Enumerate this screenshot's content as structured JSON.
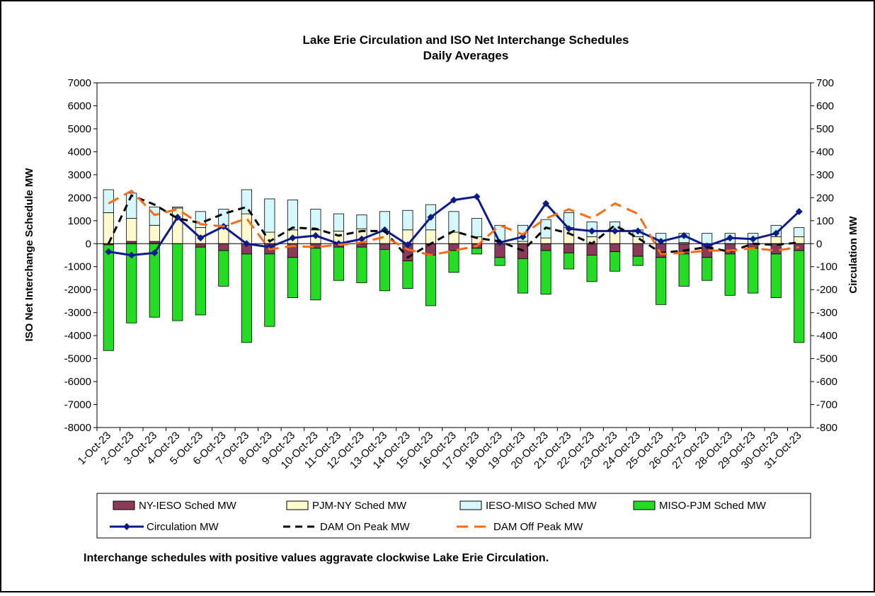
{
  "chart_data": {
    "type": "bar",
    "title": "Lake Erie Circulation and ISO Net Interchange Schedules",
    "subtitle": "Daily Averages",
    "y_label": "ISO Net Interchange Schedule MW",
    "y2_label": "Circulation MW",
    "note": "Interchange schedules with positive values aggravate clockwise Lake Erie Circulation.",
    "categories": [
      "1-Oct-23",
      "2-Oct-23",
      "3-Oct-23",
      "4-Oct-23",
      "5-Oct-23",
      "6-Oct-23",
      "7-Oct-23",
      "8-Oct-23",
      "9-Oct-23",
      "10-Oct-23",
      "11-Oct-23",
      "12-Oct-23",
      "13-Oct-23",
      "14-Oct-23",
      "15-Oct-23",
      "16-Oct-23",
      "17-Oct-23",
      "18-Oct-23",
      "19-Oct-23",
      "20-Oct-23",
      "21-Oct-23",
      "22-Oct-23",
      "23-Oct-23",
      "24-Oct-23",
      "25-Oct-23",
      "26-Oct-23",
      "27-Oct-23",
      "28-Oct-23",
      "29-Oct-23",
      "30-Oct-23",
      "31-Oct-23"
    ],
    "ylim": [
      -8000,
      7000
    ],
    "yticks": [
      -8000,
      -7000,
      -6000,
      -5000,
      -4000,
      -3000,
      -2000,
      -1000,
      0,
      1000,
      2000,
      3000,
      4000,
      5000,
      6000,
      7000
    ],
    "y2lim": [
      -800,
      700
    ],
    "y2ticks": [
      -800,
      -700,
      -600,
      -500,
      -400,
      -300,
      -200,
      -100,
      0,
      100,
      200,
      300,
      400,
      500,
      600,
      700
    ],
    "series": [
      {
        "name": "NY-IESO Sched MW",
        "kind": "bar",
        "color": "#8b3a5a",
        "values": [
          -50,
          100,
          100,
          0,
          -150,
          -300,
          -450,
          -450,
          -600,
          -200,
          -150,
          -150,
          -250,
          -750,
          -500,
          -300,
          -200,
          -600,
          -650,
          -300,
          -400,
          -500,
          -350,
          -550,
          -600,
          -450,
          -600,
          -450,
          -200,
          -450,
          -300
        ]
      },
      {
        "name": "PJM-NY Sched MW",
        "kind": "bar",
        "color": "#fffacd",
        "values": [
          1350,
          1000,
          700,
          1550,
          700,
          800,
          1300,
          500,
          600,
          600,
          550,
          650,
          550,
          600,
          600,
          500,
          300,
          100,
          100,
          250,
          700,
          300,
          550,
          300,
          0,
          50,
          0,
          0,
          0,
          300,
          300
        ]
      },
      {
        "name": "IESO-MISO Sched MW",
        "kind": "bar",
        "color": "#d4f8fc",
        "values": [
          1000,
          1100,
          800,
          50,
          700,
          700,
          1050,
          1450,
          1300,
          900,
          750,
          600,
          850,
          850,
          1100,
          900,
          800,
          700,
          700,
          800,
          650,
          650,
          400,
          300,
          450,
          400,
          450,
          450,
          450,
          500,
          400
        ]
      },
      {
        "name": "MISO-PJM Sched MW",
        "kind": "bar",
        "color": "#22dd22",
        "values": [
          -4600,
          -3450,
          -3200,
          -3350,
          -2950,
          -1550,
          -3850,
          -3150,
          -1750,
          -2250,
          -1450,
          -1550,
          -1800,
          -1200,
          -2200,
          -950,
          -250,
          -350,
          -1500,
          -1900,
          -700,
          -1150,
          -850,
          -400,
          -2050,
          -1400,
          -1000,
          -1800,
          -1950,
          -1900,
          -4000
        ]
      },
      {
        "name": "Circulation MW",
        "kind": "line",
        "axis": "y2",
        "color": "#0b1a8c",
        "values": [
          -35,
          -50,
          -40,
          115,
          25,
          75,
          0,
          -15,
          25,
          35,
          0,
          20,
          60,
          -5,
          115,
          190,
          205,
          5,
          30,
          175,
          65,
          55,
          55,
          55,
          10,
          35,
          -10,
          25,
          20,
          45,
          140
        ]
      },
      {
        "name": "DAM On Peak MW",
        "kind": "line",
        "axis": "y2",
        "color": "#000000",
        "values": [
          0,
          210,
          170,
          110,
          90,
          130,
          160,
          10,
          70,
          65,
          35,
          55,
          55,
          -60,
          0,
          55,
          25,
          10,
          -30,
          70,
          45,
          0,
          80,
          25,
          -40,
          -30,
          -15,
          -35,
          0,
          -5,
          5
        ]
      },
      {
        "name": "DAM Off Peak MW",
        "kind": "line",
        "axis": "y2",
        "color": "#ff6a13",
        "values": [
          175,
          230,
          125,
          150,
          85,
          75,
          110,
          -25,
          -10,
          -15,
          -5,
          5,
          30,
          -25,
          -50,
          -30,
          -10,
          80,
          40,
          110,
          150,
          110,
          175,
          130,
          -45,
          -40,
          -30,
          -30,
          -20,
          -30,
          -15
        ]
      }
    ]
  }
}
